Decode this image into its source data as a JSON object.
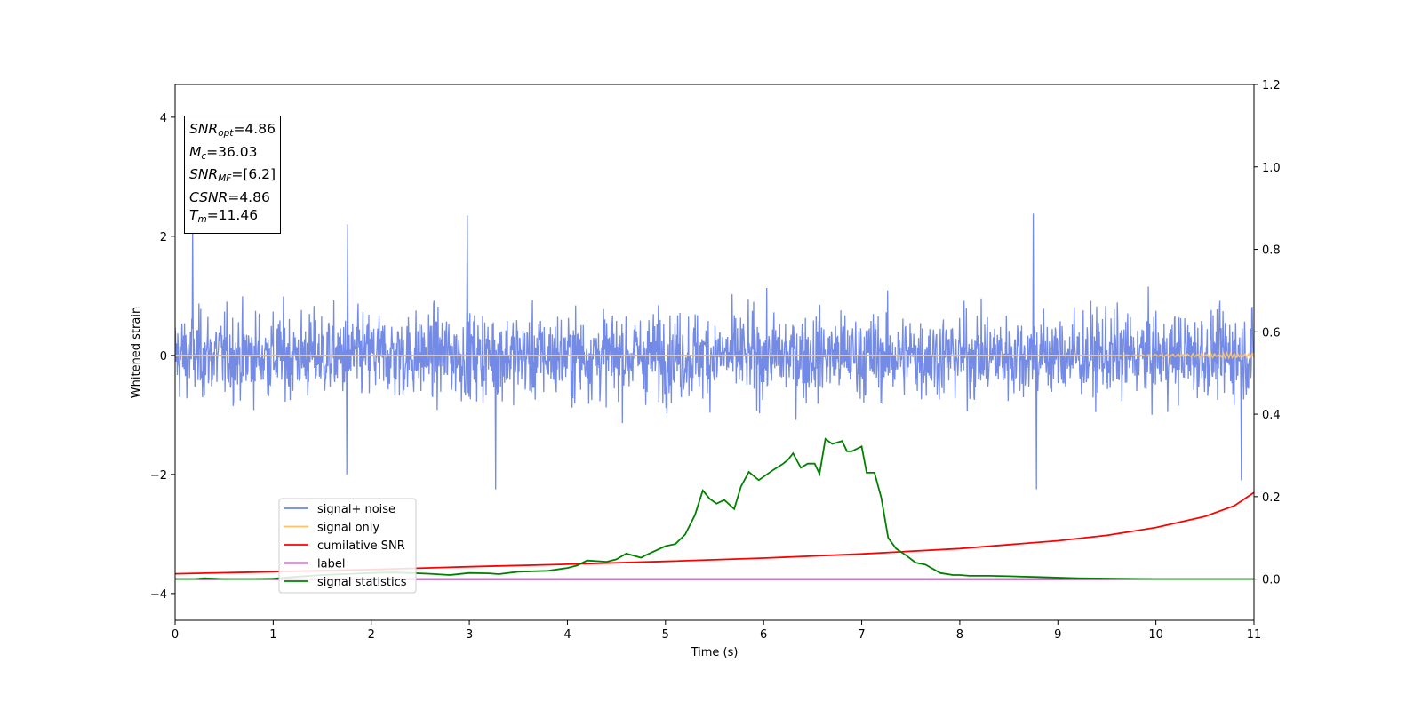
{
  "chart_data": {
    "type": "line",
    "xlabel": "Time (s)",
    "ylabel": "Whitened strain",
    "xlim": [
      0,
      11
    ],
    "ylim": [
      -4.45,
      4.55
    ],
    "ylim_right": [
      -0.1,
      1.2
    ],
    "x_ticks": [
      "0",
      "1",
      "2",
      "3",
      "4",
      "5",
      "6",
      "7",
      "8",
      "9",
      "10",
      "11"
    ],
    "y_ticks": [
      "−4",
      "−2",
      "0",
      "2",
      "4"
    ],
    "y_ticks_right": [
      "0.0",
      "0.2",
      "0.4",
      "0.6",
      "0.8",
      "1.0",
      "1.2"
    ],
    "grid": false,
    "legend_position": "lower-left",
    "colors": {
      "signal_noise": "#6b85e5",
      "signal_only": "#ffc266",
      "cumulative_snr": "#ff0000",
      "label": "#800080",
      "signal_statistics": "#008000"
    },
    "legend": [
      "signal+ noise",
      "signal only",
      "cumilative SNR",
      "label",
      "signal statistics"
    ],
    "info_box": {
      "snr_opt": {
        "symbol": "SNR",
        "sub": "opt",
        "value": "=4.86"
      },
      "mc": {
        "symbol": "M",
        "sub": "c",
        "value": "=36.03"
      },
      "snr_mf": {
        "symbol": "SNR",
        "sub": "MF",
        "value": "=[6.2]"
      },
      "csnr": {
        "symbol": "CSNR",
        "value": "=4.86"
      },
      "tm": {
        "symbol": "T",
        "sub": "m",
        "value": "=11.46"
      }
    },
    "series": [
      {
        "name": "signal+ noise",
        "axis": "left",
        "description_values": "noise band, typical amplitude ±1.2, peaks up to ±2.3",
        "amplitude": 1.05,
        "peaks": [
          [
            0.18,
            2.15
          ],
          [
            1.76,
            2.2
          ],
          [
            2.98,
            2.35
          ],
          [
            8.75,
            2.38
          ],
          [
            1.75,
            -2.0
          ],
          [
            3.27,
            -2.25
          ],
          [
            8.78,
            -2.25
          ],
          [
            10.87,
            -2.1
          ]
        ]
      },
      {
        "name": "signal only",
        "axis": "left",
        "values_x": [
          0,
          10,
          11
        ],
        "values_y": [
          0,
          0,
          0
        ],
        "chirp_start": 9.5
      },
      {
        "name": "cumilative SNR",
        "axis": "right",
        "x": [
          0,
          1,
          2,
          3,
          4,
          5,
          6,
          7,
          8,
          9,
          9.5,
          10,
          10.5,
          10.8,
          11
        ],
        "y": [
          0.013,
          0.018,
          0.023,
          0.03,
          0.036,
          0.043,
          0.051,
          0.061,
          0.074,
          0.093,
          0.106,
          0.125,
          0.152,
          0.178,
          0.21
        ]
      },
      {
        "name": "label",
        "axis": "right",
        "x": [
          0,
          11
        ],
        "y": [
          0,
          0
        ]
      },
      {
        "name": "signal statistics",
        "axis": "right",
        "x": [
          0,
          0.2,
          0.3,
          0.5,
          0.8,
          1.0,
          1.2,
          1.5,
          1.8,
          2.0,
          2.2,
          2.4,
          2.6,
          2.8,
          3.0,
          3.2,
          3.3,
          3.5,
          3.8,
          4.0,
          4.1,
          4.2,
          4.4,
          4.5,
          4.6,
          4.75,
          4.8,
          5.0,
          5.1,
          5.2,
          5.3,
          5.38,
          5.45,
          5.52,
          5.6,
          5.7,
          5.77,
          5.85,
          5.95,
          6.1,
          6.2,
          6.25,
          6.3,
          6.38,
          6.45,
          6.52,
          6.57,
          6.63,
          6.7,
          6.8,
          6.85,
          6.9,
          7.0,
          7.05,
          7.13,
          7.2,
          7.27,
          7.35,
          7.45,
          7.55,
          7.65,
          7.8,
          7.93,
          8.0,
          8.1,
          8.3,
          8.5,
          8.8,
          9.2,
          9.6,
          10.0,
          10.5,
          11.0
        ],
        "y": [
          0.0,
          0.0,
          0.002,
          0.0,
          0.0,
          0.001,
          0.005,
          0.01,
          0.013,
          0.015,
          0.016,
          0.015,
          0.013,
          0.01,
          0.015,
          0.014,
          0.012,
          0.018,
          0.02,
          0.027,
          0.033,
          0.045,
          0.042,
          0.048,
          0.062,
          0.052,
          0.058,
          0.08,
          0.085,
          0.108,
          0.155,
          0.215,
          0.195,
          0.183,
          0.192,
          0.17,
          0.225,
          0.26,
          0.24,
          0.265,
          0.28,
          0.29,
          0.305,
          0.27,
          0.28,
          0.28,
          0.255,
          0.34,
          0.328,
          0.335,
          0.31,
          0.31,
          0.322,
          0.258,
          0.258,
          0.197,
          0.1,
          0.074,
          0.058,
          0.04,
          0.035,
          0.015,
          0.01,
          0.01,
          0.008,
          0.008,
          0.007,
          0.005,
          0.002,
          0.001,
          0.0,
          0.0,
          0.0
        ]
      }
    ]
  }
}
